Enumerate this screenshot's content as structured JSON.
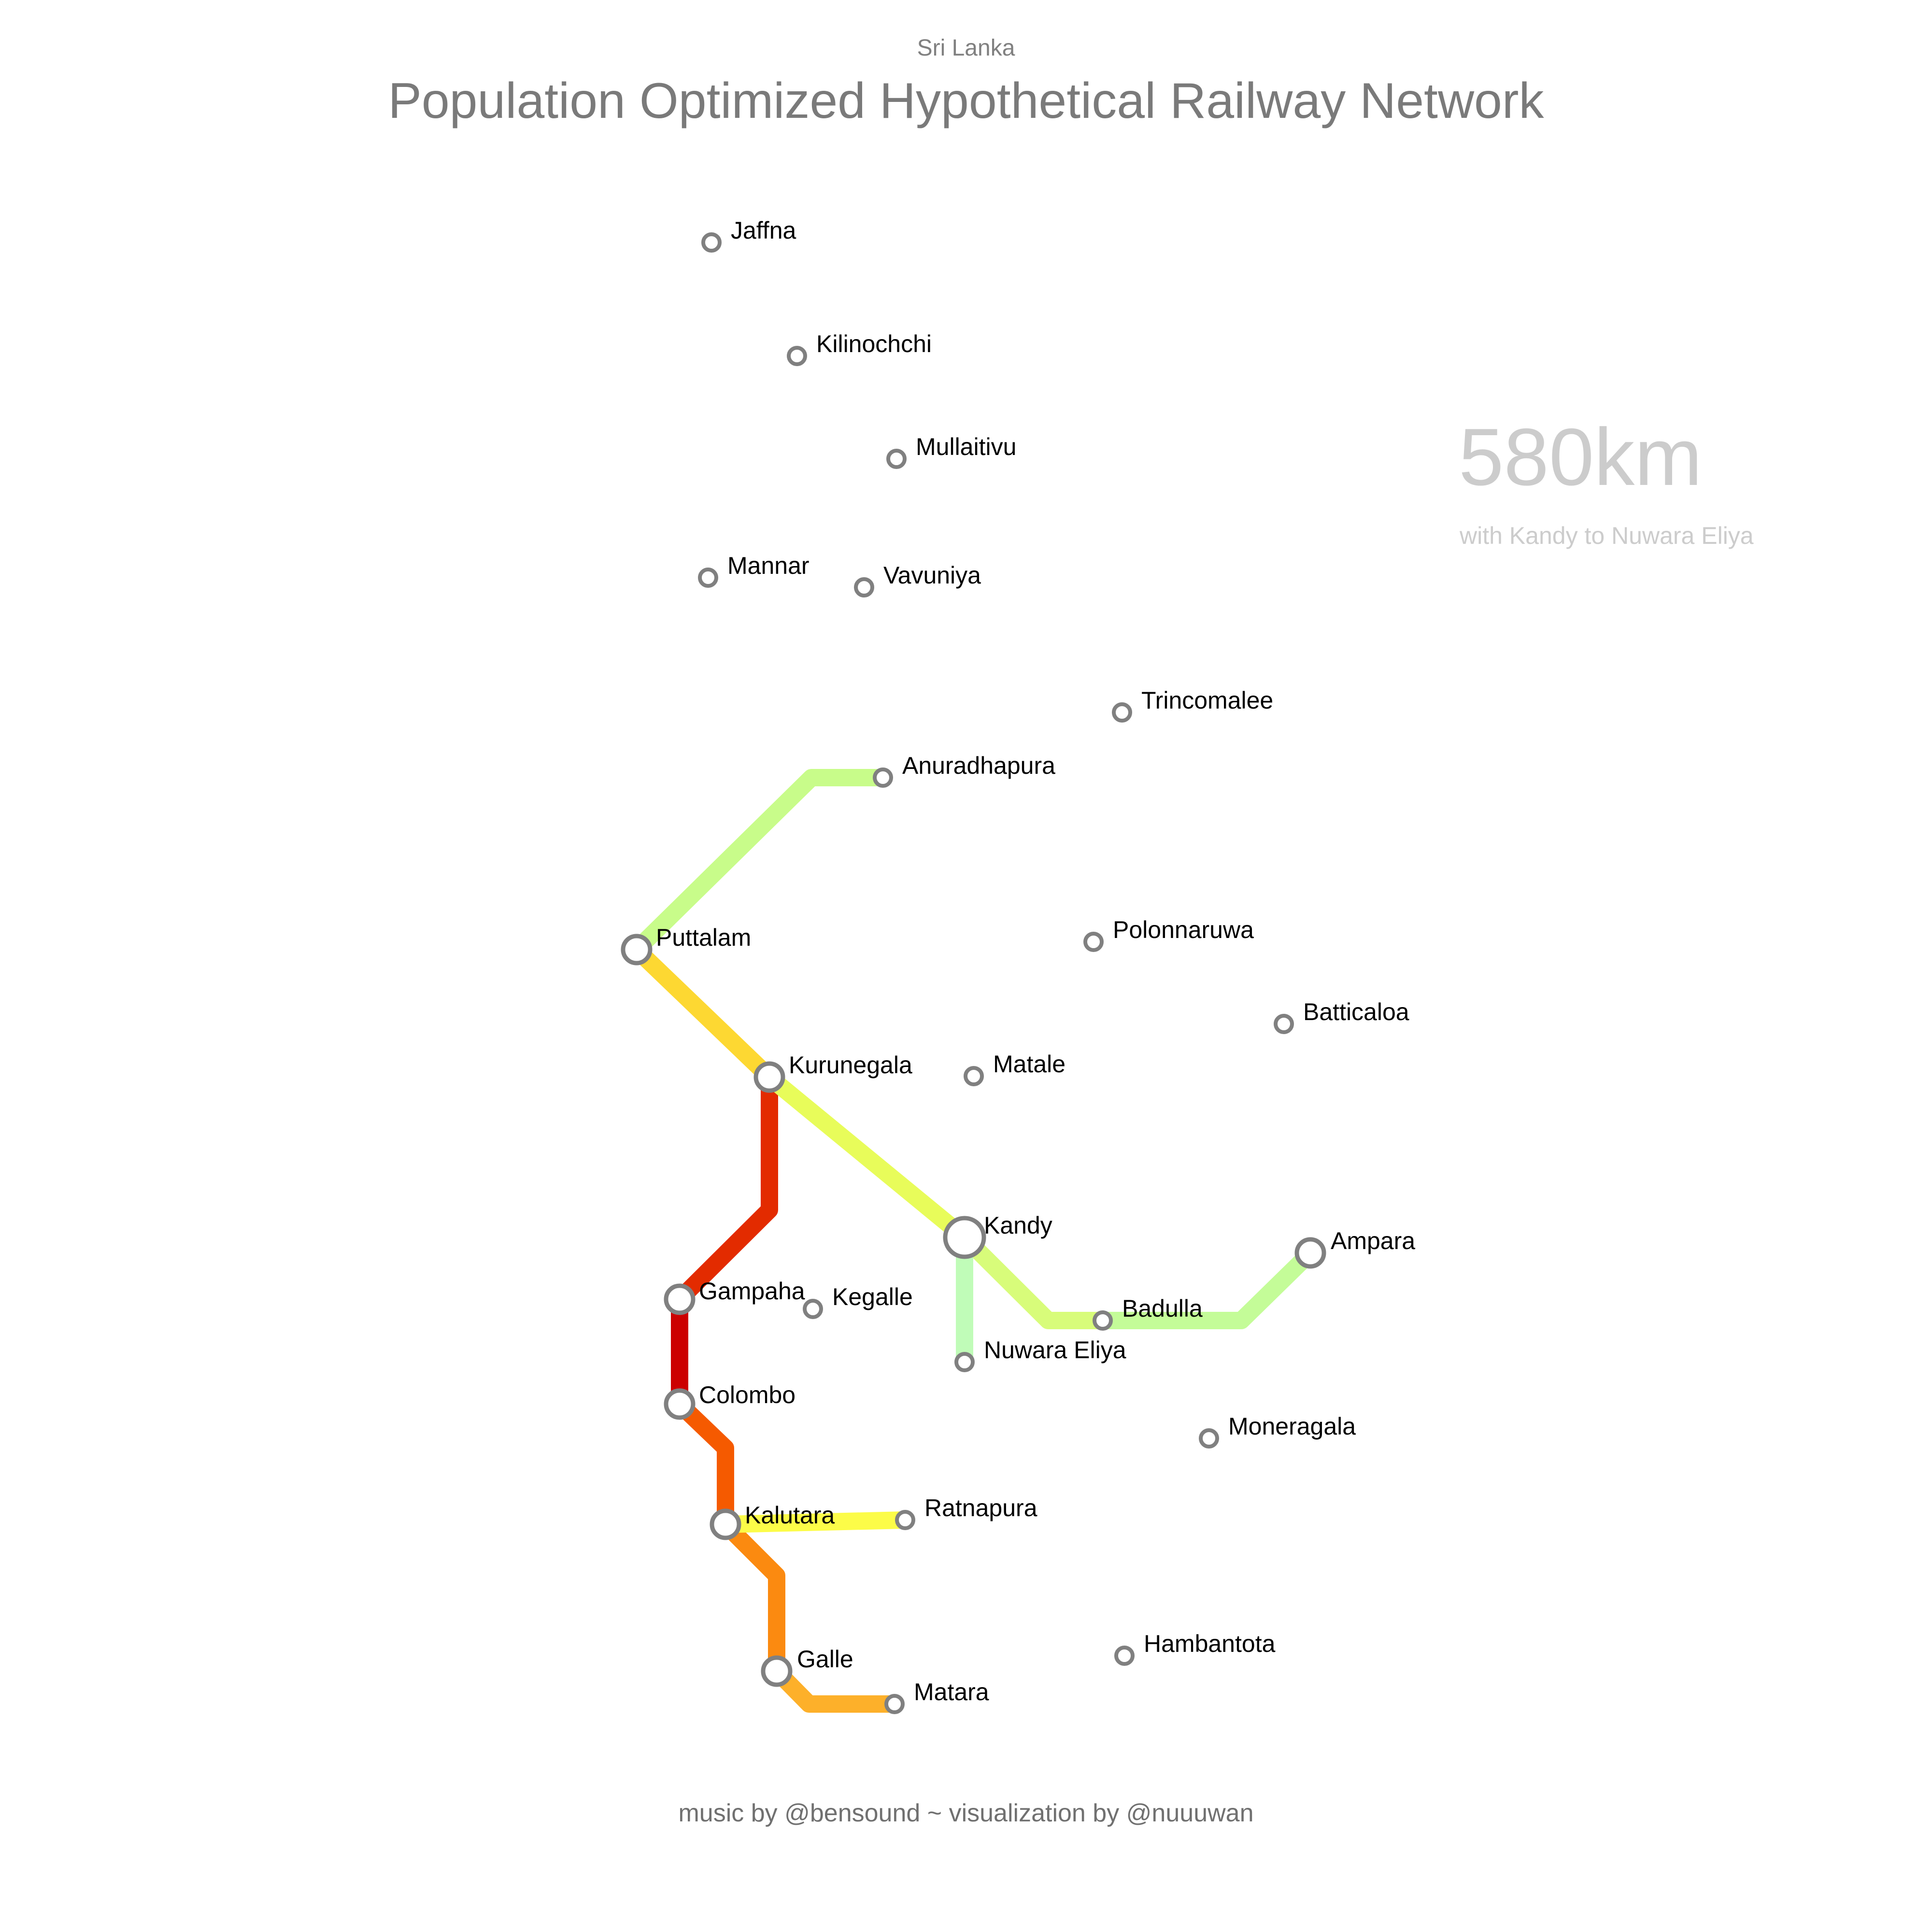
{
  "header": {
    "subtitle": "Sri Lanka",
    "title": "Population Optimized Hypothetical Railway Network"
  },
  "stats": {
    "distance": "580km",
    "note": "with Kandy to Nuwara Eliya"
  },
  "footer": {
    "credit": "music by @bensound ~ visualization by @nuuuwan"
  },
  "stations": [
    {
      "name": "Jaffna",
      "major": false
    },
    {
      "name": "Kilinochchi",
      "major": false
    },
    {
      "name": "Mullaitivu",
      "major": false
    },
    {
      "name": "Mannar",
      "major": false
    },
    {
      "name": "Vavuniya",
      "major": false
    },
    {
      "name": "Trincomalee",
      "major": false
    },
    {
      "name": "Anuradhapura",
      "major": false
    },
    {
      "name": "Polonnaruwa",
      "major": false
    },
    {
      "name": "Puttalam",
      "major": true
    },
    {
      "name": "Batticaloa",
      "major": false
    },
    {
      "name": "Kurunegala",
      "major": true
    },
    {
      "name": "Matale",
      "major": false
    },
    {
      "name": "Kandy",
      "major": true
    },
    {
      "name": "Ampara",
      "major": true
    },
    {
      "name": "Gampaha",
      "major": true
    },
    {
      "name": "Kegalle",
      "major": false
    },
    {
      "name": "Badulla",
      "major": false
    },
    {
      "name": "Nuwara Eliya",
      "major": false
    },
    {
      "name": "Colombo",
      "major": true
    },
    {
      "name": "Moneragala",
      "major": false
    },
    {
      "name": "Kalutara",
      "major": true
    },
    {
      "name": "Ratnapura",
      "major": false
    },
    {
      "name": "Hambantota",
      "major": false
    },
    {
      "name": "Galle",
      "major": true
    },
    {
      "name": "Matara",
      "major": false
    }
  ],
  "lines": [
    {
      "from": "Colombo",
      "to": "Gampaha",
      "color": "#cc0000"
    },
    {
      "from": "Gampaha",
      "to": "Kurunegala",
      "color": "#e32b00"
    },
    {
      "from": "Colombo",
      "to": "Kalutara",
      "color": "#f55a00"
    },
    {
      "from": "Kalutara",
      "to": "Galle",
      "color": "#fb8a10"
    },
    {
      "from": "Galle",
      "to": "Matara",
      "color": "#fdb02a"
    },
    {
      "from": "Kurunegala",
      "to": "Puttalam",
      "color": "#fdd832"
    },
    {
      "from": "Kalutara",
      "to": "Ratnapura",
      "color": "#fcfc48"
    },
    {
      "from": "Kurunegala",
      "to": "Kandy",
      "color": "#e8fc5a"
    },
    {
      "from": "Kandy",
      "to": "Badulla",
      "color": "#d8fc7a"
    },
    {
      "from": "Puttalam",
      "to": "Anuradhapura",
      "color": "#c8fc8a"
    },
    {
      "from": "Badulla",
      "to": "Ampara",
      "color": "#c4fc98"
    },
    {
      "from": "Kandy",
      "to": "Nuwara Eliya",
      "color": "#c0fcb8"
    }
  ]
}
